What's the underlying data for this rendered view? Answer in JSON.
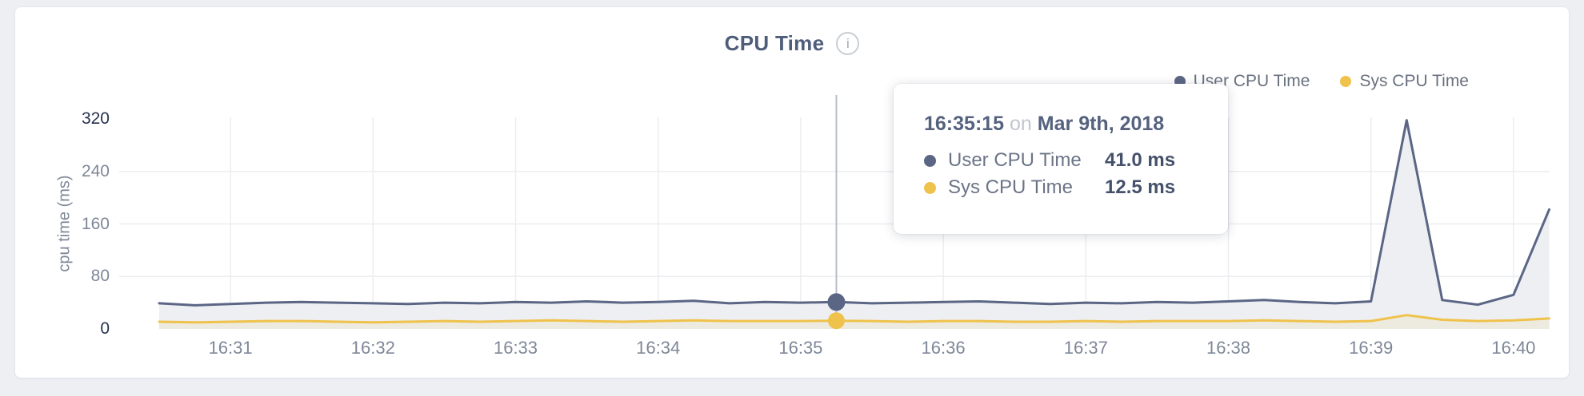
{
  "title": "CPU Time",
  "info_glyph": "i",
  "legend": {
    "items": [
      {
        "id": "user",
        "label": "User CPU Time",
        "color": "#5b6685"
      },
      {
        "id": "sys",
        "label": "Sys CPU Time",
        "color": "#efc24b"
      }
    ]
  },
  "tooltip": {
    "time": "16:35:15",
    "conj": "on",
    "date": "Mar 9th, 2018",
    "rows": [
      {
        "name": "User CPU Time",
        "value": "41.0 ms",
        "color": "#5b6685"
      },
      {
        "name": "Sys CPU Time",
        "value": "12.5 ms",
        "color": "#efc24b"
      }
    ]
  },
  "chart_data": {
    "type": "area",
    "title": "CPU Time",
    "xlabel": "",
    "ylabel": "cpu time (ms)",
    "ylim": [
      0,
      320
    ],
    "y_ticks": [
      0,
      80,
      160,
      240,
      320
    ],
    "x_tick_labels": [
      "16:31",
      "16:32",
      "16:33",
      "16:34",
      "16:35",
      "16:36",
      "16:37",
      "16:38",
      "16:39",
      "16:40"
    ],
    "grid": true,
    "grid_color": "#ebedf0",
    "legend_position": "top-right",
    "crosshair_color": "#b9bdc6",
    "x_times": [
      "16:30:30",
      "16:30:45",
      "16:31:00",
      "16:31:15",
      "16:31:30",
      "16:31:45",
      "16:32:00",
      "16:32:15",
      "16:32:30",
      "16:32:45",
      "16:33:00",
      "16:33:15",
      "16:33:30",
      "16:33:45",
      "16:34:00",
      "16:34:15",
      "16:34:30",
      "16:34:45",
      "16:35:00",
      "16:35:15",
      "16:35:30",
      "16:35:45",
      "16:36:00",
      "16:36:15",
      "16:36:30",
      "16:36:45",
      "16:37:00",
      "16:37:15",
      "16:37:30",
      "16:37:45",
      "16:38:00",
      "16:38:15",
      "16:38:30",
      "16:38:45",
      "16:39:00",
      "16:39:15",
      "16:39:30",
      "16:39:45",
      "16:40:00",
      "16:40:15"
    ],
    "series": [
      {
        "id": "user",
        "name": "User CPU Time",
        "color": "#5b6685",
        "fill": "#edeff3",
        "values": [
          39,
          36,
          38,
          40,
          41,
          40,
          39,
          38,
          40,
          39,
          41,
          40,
          42,
          40,
          41,
          43,
          39,
          41,
          40,
          41,
          39,
          40,
          41,
          42,
          40,
          38,
          40,
          39,
          41,
          40,
          42,
          44,
          41,
          39,
          42,
          318,
          44,
          37,
          52,
          182
        ]
      },
      {
        "id": "sys",
        "name": "Sys CPU Time",
        "color": "#efc24b",
        "fill": "#edeadf",
        "values": [
          11,
          10,
          11,
          12,
          12,
          11,
          10,
          11,
          12,
          11,
          12,
          13,
          12,
          11,
          12,
          13,
          12,
          12,
          12,
          12.5,
          12,
          11,
          12,
          12,
          11,
          11,
          12,
          11,
          12,
          12,
          12,
          13,
          12,
          11,
          12,
          21,
          14,
          12,
          13,
          16
        ]
      }
    ],
    "hover": {
      "time": "16:35:15",
      "user_ms": 41.0,
      "sys_ms": 12.5
    }
  }
}
